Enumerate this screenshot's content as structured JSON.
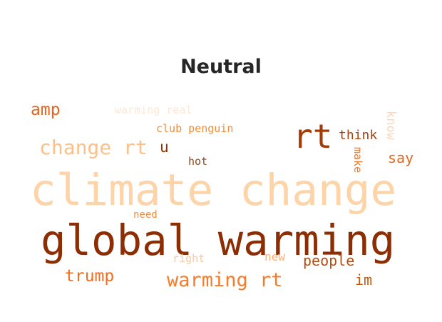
{
  "title": "Neutral",
  "words": [
    {
      "text": "climate change",
      "color": "#fdd3a8"
    },
    {
      "text": "global warming",
      "color": "#8c2d04"
    },
    {
      "text": "rt",
      "color": "#a33b06"
    },
    {
      "text": "change rt",
      "color": "#fdc08a"
    },
    {
      "text": "warming rt",
      "color": "#f47d2b"
    },
    {
      "text": "amp",
      "color": "#e8621b"
    },
    {
      "text": "trump",
      "color": "#f36d1e"
    },
    {
      "text": "say",
      "color": "#e4691f"
    },
    {
      "text": "people",
      "color": "#b24f14"
    },
    {
      "text": "think",
      "color": "#a84110"
    },
    {
      "text": "u",
      "color": "#8c3508"
    },
    {
      "text": "club penguin",
      "color": "#f58d3c"
    },
    {
      "text": "im",
      "color": "#c55813"
    },
    {
      "text": "hot",
      "color": "#8e4b24"
    },
    {
      "text": "warming real",
      "color": "#fde7d2"
    },
    {
      "text": "know",
      "color": "#fdd6b6"
    },
    {
      "text": "make",
      "color": "#f07a2e"
    },
    {
      "text": "new",
      "color": "#fbb27a"
    },
    {
      "text": "need",
      "color": "#f98b3d"
    },
    {
      "text": "right",
      "color": "#fcc9a0"
    }
  ]
}
